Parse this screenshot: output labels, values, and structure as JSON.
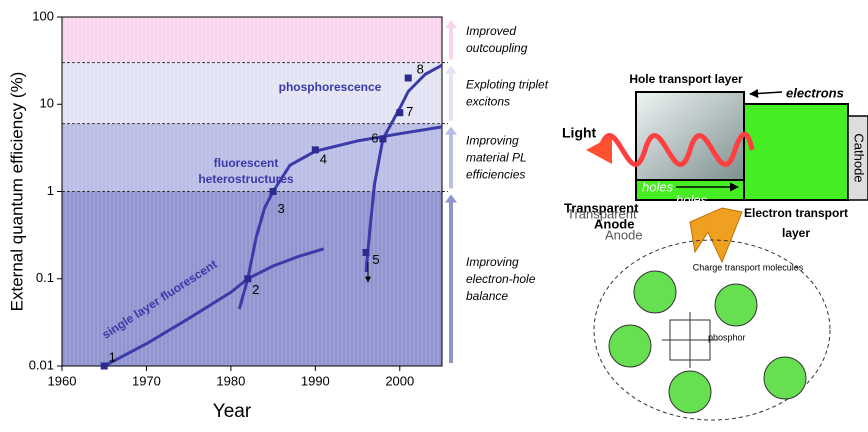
{
  "chart_data": {
    "type": "line",
    "x_label": "Year",
    "y_label": "External quantum efficiency (%)",
    "xlim": [
      1960,
      2005
    ],
    "xticks": [
      1960,
      1970,
      1980,
      1990,
      2000
    ],
    "ylim": [
      0.01,
      100
    ],
    "yticks": [
      0.01,
      0.1,
      1,
      10,
      100
    ],
    "yscale": "log",
    "series": [
      {
        "name": "single layer fluorescent",
        "color": "#3a3aa8",
        "x": [
          1965,
          1970,
          1975,
          1980,
          1982,
          1985,
          1988,
          1991
        ],
        "values": [
          0.01,
          0.018,
          0.035,
          0.07,
          0.1,
          0.14,
          0.18,
          0.22
        ]
      },
      {
        "name": "fluorescent heterostructures",
        "color": "#3a3aa8",
        "x": [
          1981,
          1982,
          1983,
          1984,
          1985,
          1987,
          1990,
          1995,
          2000,
          2005
        ],
        "values": [
          0.045,
          0.1,
          0.3,
          0.65,
          1,
          2,
          2.9,
          3.8,
          4.6,
          5.5
        ]
      },
      {
        "name": "phosphorescence",
        "color": "#3a3aa8",
        "x": [
          1996,
          1996.5,
          1997,
          1998,
          1999,
          2000,
          2001,
          2003,
          2005
        ],
        "values": [
          0.12,
          0.4,
          1.2,
          4,
          6,
          9,
          14,
          22,
          28
        ]
      }
    ],
    "points": {
      "x": [
        1965,
        1982,
        1985,
        1990,
        1996,
        1998,
        2000,
        2001
      ],
      "values": [
        0.01,
        0.1,
        1,
        3,
        0.2,
        4,
        8,
        20
      ],
      "labels": [
        "1",
        "2",
        "3",
        "4",
        "5",
        "6",
        "7",
        "8"
      ]
    },
    "bands": [
      {
        "from": 30,
        "to": 100,
        "color": "#f8d4ee",
        "label": [
          "Improved",
          "outcoupling"
        ]
      },
      {
        "from": 6,
        "to": 30,
        "color": "#e2e3f3",
        "label": [
          "Exploting triplet",
          "excitons"
        ]
      },
      {
        "from": 1,
        "to": 6,
        "color": "#b9bce4",
        "label": [
          "Improving",
          "material PL",
          "efficiencies"
        ]
      },
      {
        "from": 0.01,
        "to": 1,
        "color": "#8f93cf",
        "label": [
          "Improving",
          "electron-hole",
          "balance"
        ]
      }
    ]
  },
  "diagram": {
    "hole_layer": "Hole transport layer",
    "electrons": "electrons",
    "light": "Light",
    "cathode": "Cathode",
    "holes": "holes",
    "holes_echo": "holes",
    "anode": [
      "Transparent",
      "Anode"
    ],
    "anode_echo": [
      "Transparent",
      "Anode"
    ],
    "electron_layer": [
      "Electron transport",
      "layer"
    ],
    "molecules": "Charge transport molecules",
    "phosphor": "phosphor"
  }
}
